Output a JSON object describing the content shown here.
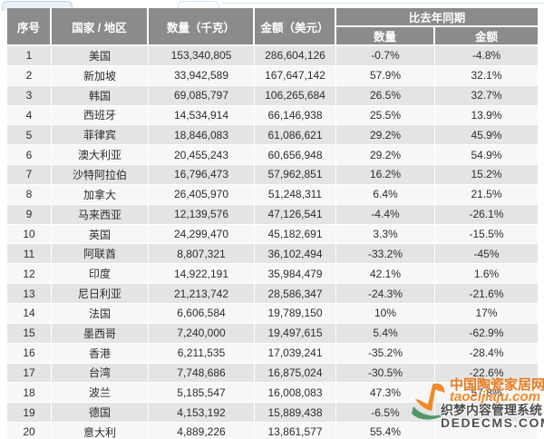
{
  "table": {
    "columns": {
      "no": "序号",
      "country": "国家 / 地区",
      "qty": "数量（千克）",
      "amount": "金额（美元）"
    },
    "group_header": "比去年同期",
    "sub_columns": {
      "qty_pct": "数量",
      "amount_pct": "金额"
    },
    "rows": [
      {
        "no": "1",
        "country": "美国",
        "qty": "153,340,805",
        "amount": "286,604,126",
        "qty_pct": "-0.7%",
        "amount_pct": "-4.8%"
      },
      {
        "no": "2",
        "country": "新加坡",
        "qty": "33,942,589",
        "amount": "167,647,142",
        "qty_pct": "57.9%",
        "amount_pct": "32.1%"
      },
      {
        "no": "3",
        "country": "韩国",
        "qty": "69,085,797",
        "amount": "106,265,684",
        "qty_pct": "26.5%",
        "amount_pct": "32.7%"
      },
      {
        "no": "4",
        "country": "西班牙",
        "qty": "14,534,914",
        "amount": "66,146,938",
        "qty_pct": "25.5%",
        "amount_pct": "13.9%"
      },
      {
        "no": "5",
        "country": "菲律宾",
        "qty": "18,846,083",
        "amount": "61,086,621",
        "qty_pct": "29.2%",
        "amount_pct": "45.9%"
      },
      {
        "no": "6",
        "country": "澳大利亚",
        "qty": "20,455,243",
        "amount": "60,656,948",
        "qty_pct": "29.2%",
        "amount_pct": "54.9%"
      },
      {
        "no": "7",
        "country": "沙特阿拉伯",
        "qty": "16,796,473",
        "amount": "57,962,851",
        "qty_pct": "16.2%",
        "amount_pct": "15.2%"
      },
      {
        "no": "8",
        "country": "加拿大",
        "qty": "26,405,970",
        "amount": "51,248,311",
        "qty_pct": "6.4%",
        "amount_pct": "21.5%"
      },
      {
        "no": "9",
        "country": "马来西亚",
        "qty": "12,139,576",
        "amount": "47,126,541",
        "qty_pct": "-4.4%",
        "amount_pct": "-26.1%"
      },
      {
        "no": "10",
        "country": "英国",
        "qty": "24,299,470",
        "amount": "45,182,691",
        "qty_pct": "3.3%",
        "amount_pct": "-15.5%"
      },
      {
        "no": "11",
        "country": "阿联酋",
        "qty": "8,807,321",
        "amount": "36,102,494",
        "qty_pct": "-33.2%",
        "amount_pct": "-45%"
      },
      {
        "no": "12",
        "country": "印度",
        "qty": "14,922,191",
        "amount": "35,984,479",
        "qty_pct": "42.1%",
        "amount_pct": "1.6%"
      },
      {
        "no": "13",
        "country": "尼日利亚",
        "qty": "21,213,742",
        "amount": "28,586,347",
        "qty_pct": "-24.3%",
        "amount_pct": "-21.6%"
      },
      {
        "no": "14",
        "country": "法国",
        "qty": "6,606,584",
        "amount": "19,789,150",
        "qty_pct": "10%",
        "amount_pct": "17%"
      },
      {
        "no": "15",
        "country": "墨西哥",
        "qty": "7,240,000",
        "amount": "19,497,615",
        "qty_pct": "5.4%",
        "amount_pct": "-62.9%"
      },
      {
        "no": "16",
        "country": "香港",
        "qty": "6,211,535",
        "amount": "17,039,241",
        "qty_pct": "-35.2%",
        "amount_pct": "-28.4%"
      },
      {
        "no": "17",
        "country": "台湾",
        "qty": "7,748,686",
        "amount": "16,875,024",
        "qty_pct": "-30.5%",
        "amount_pct": "-22.6%"
      },
      {
        "no": "18",
        "country": "波兰",
        "qty": "5,185,547",
        "amount": "16,008,083",
        "qty_pct": "47.3%",
        "amount_pct": "57.8%"
      },
      {
        "no": "19",
        "country": "德国",
        "qty": "4,153,192",
        "amount": "15,889,438",
        "qty_pct": "-6.5%",
        "amount_pct": ""
      },
      {
        "no": "20",
        "country": "意大利",
        "qty": "4,889,226",
        "amount": "13,861,577",
        "qty_pct": "55.4%",
        "amount_pct": ""
      }
    ]
  },
  "watermark": {
    "site_name": "中国陶瓷家居网",
    "site_domain": "taocijiaju.com",
    "cms_name": "织梦内容管理系统",
    "cms_domain": "DEDECMS.COM"
  },
  "colors": {
    "header_bg": "#8b8b8b",
    "row_odd_bg": "#e4e4e4",
    "row_even_bg": "#f7f7f7",
    "text": "#2d2d2d",
    "watermark_orange": "#e87c1e",
    "watermark_gray": "#4d4d4d"
  }
}
